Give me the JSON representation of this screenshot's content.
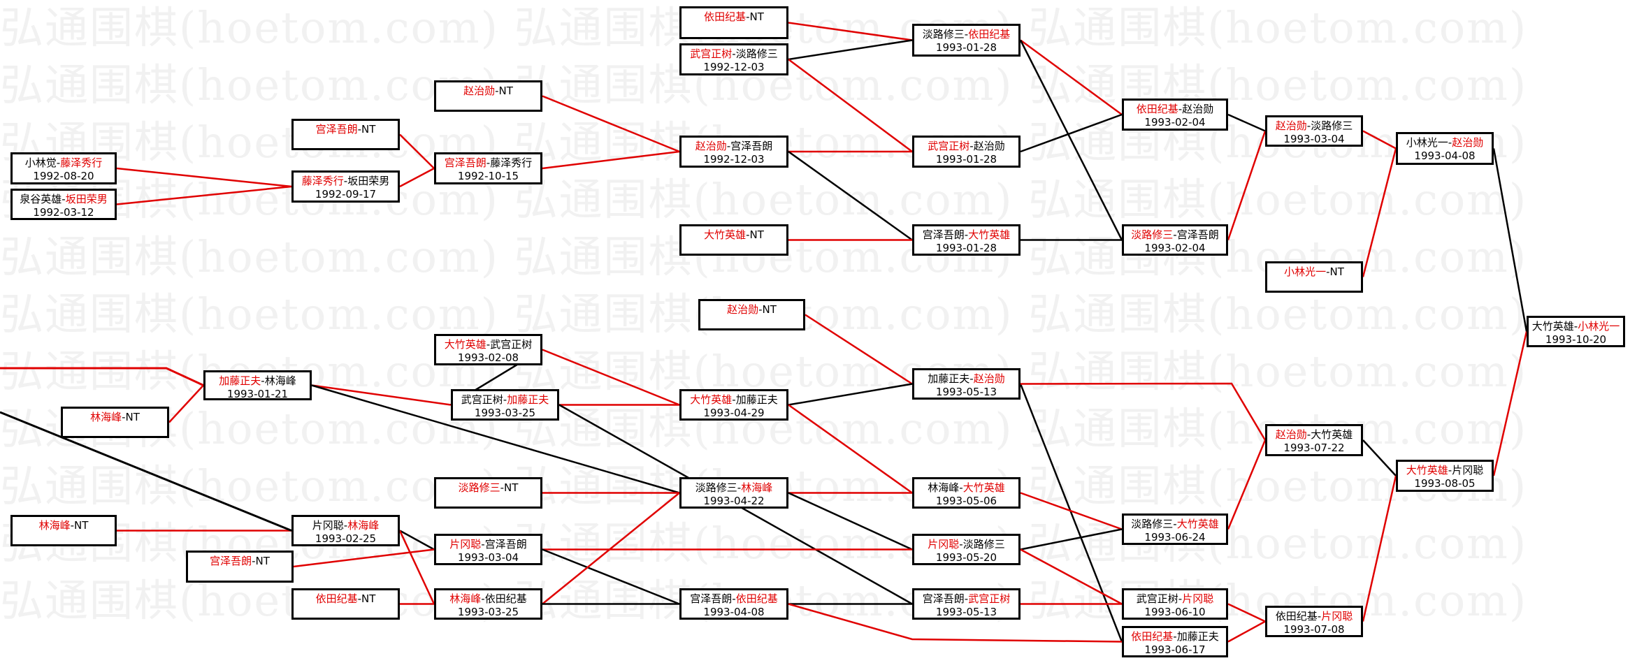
{
  "watermark": "弘通围棋(hoetom.com) 弘通围棋(hoetom.com) 弘通围棋(hoetom.com)",
  "colors": {
    "winner": "#e00000",
    "loser": "#000000",
    "border": "#000000"
  },
  "matches": [
    {
      "id": "A1",
      "p1": "小林觉",
      "p2": "藤泽秀行",
      "date": "1992-08-20",
      "winner": "p2"
    },
    {
      "id": "A2",
      "p1": "泉谷英雄",
      "p2": "坂田荣男",
      "date": "1992-03-12",
      "winner": "p2"
    },
    {
      "id": "B1",
      "p1": "宫泽吾朗",
      "p2": "NT",
      "date": "",
      "winner": "p1"
    },
    {
      "id": "B2",
      "p1": "藤泽秀行",
      "p2": "坂田荣男",
      "date": "1992-09-17",
      "winner": "p1"
    },
    {
      "id": "C1",
      "p1": "赵治勋",
      "p2": "NT",
      "date": "",
      "winner": "p1"
    },
    {
      "id": "C2",
      "p1": "宫泽吾朗",
      "p2": "藤泽秀行",
      "date": "1992-10-15",
      "winner": "p1"
    },
    {
      "id": "D1",
      "p1": "依田纪基",
      "p2": "NT",
      "date": "",
      "winner": "p1"
    },
    {
      "id": "D2",
      "p1": "武宫正树",
      "p2": "淡路修三",
      "date": "1992-12-03",
      "winner": "p1"
    },
    {
      "id": "D3",
      "p1": "赵治勋",
      "p2": "宫泽吾朗",
      "date": "1992-12-03",
      "winner": "p1"
    },
    {
      "id": "D4",
      "p1": "大竹英雄",
      "p2": "NT",
      "date": "",
      "winner": "p1"
    },
    {
      "id": "E1",
      "p1": "淡路修三",
      "p2": "依田纪基",
      "date": "1993-01-28",
      "winner": "p2"
    },
    {
      "id": "E2",
      "p1": "武宫正树",
      "p2": "赵治勋",
      "date": "1993-01-28",
      "winner": "p1"
    },
    {
      "id": "E3",
      "p1": "宫泽吾朗",
      "p2": "大竹英雄",
      "date": "1993-01-28",
      "winner": "p2"
    },
    {
      "id": "F1",
      "p1": "依田纪基",
      "p2": "赵治勋",
      "date": "1993-02-04",
      "winner": "p1"
    },
    {
      "id": "F2",
      "p1": "淡路修三",
      "p2": "宫泽吾朗",
      "date": "1993-02-04",
      "winner": "p1"
    },
    {
      "id": "G1",
      "p1": "赵治勋",
      "p2": "淡路修三",
      "date": "1993-03-04",
      "winner": "p1"
    },
    {
      "id": "G2",
      "p1": "小林光一",
      "p2": "NT",
      "date": "",
      "winner": "p1"
    },
    {
      "id": "H1",
      "p1": "小林光一",
      "p2": "赵治勋",
      "date": "1993-04-08",
      "winner": "p2"
    },
    {
      "id": "I",
      "p1": "大竹英雄",
      "p2": "小林光一",
      "date": "1993-10-20",
      "winner": "p2"
    },
    {
      "id": "J1",
      "p1": "赵治勋",
      "p2": "NT",
      "date": "",
      "winner": "p1"
    },
    {
      "id": "K1",
      "p1": "大竹英雄",
      "p2": "武宫正树",
      "date": "1993-02-08",
      "winner": "p1"
    },
    {
      "id": "L",
      "p1": "加藤正夫",
      "p2": "林海峰",
      "date": "1993-01-21",
      "winner": "p1"
    },
    {
      "id": "M",
      "p1": "林海峰",
      "p2": "NT",
      "date": "",
      "winner": "p1"
    },
    {
      "id": "K2",
      "p1": "武宫正树",
      "p2": "加藤正夫",
      "date": "1993-03-25",
      "winner": "p2"
    },
    {
      "id": "N1",
      "p1": "大竹英雄",
      "p2": "加藤正夫",
      "date": "1993-04-29",
      "winner": "p1"
    },
    {
      "id": "O1",
      "p1": "加藤正夫",
      "p2": "赵治勋",
      "date": "1993-05-13",
      "winner": "p2"
    },
    {
      "id": "K3",
      "p1": "淡路修三",
      "p2": "NT",
      "date": "",
      "winner": "p1"
    },
    {
      "id": "N2",
      "p1": "淡路修三",
      "p2": "林海峰",
      "date": "1993-04-22",
      "winner": "p2"
    },
    {
      "id": "O2",
      "p1": "林海峰",
      "p2": "大竹英雄",
      "date": "1993-05-06",
      "winner": "p2"
    },
    {
      "id": "P",
      "p1": "林海峰",
      "p2": "NT",
      "date": "",
      "winner": "p1"
    },
    {
      "id": "Q",
      "p1": "片冈聪",
      "p2": "林海峰",
      "date": "1993-02-25",
      "winner": "p2"
    },
    {
      "id": "R",
      "p1": "宫泽吾朗",
      "p2": "NT",
      "date": "",
      "winner": "p1"
    },
    {
      "id": "K4",
      "p1": "片冈聪",
      "p2": "宫泽吾朗",
      "date": "1993-03-04",
      "winner": "p1"
    },
    {
      "id": "S",
      "p1": "依田纪基",
      "p2": "NT",
      "date": "",
      "winner": "p1"
    },
    {
      "id": "K5",
      "p1": "林海峰",
      "p2": "依田纪基",
      "date": "1993-03-25",
      "winner": "p1"
    },
    {
      "id": "N3",
      "p1": "宫泽吾朗",
      "p2": "依田纪基",
      "date": "1993-04-08",
      "winner": "p2"
    },
    {
      "id": "O3",
      "p1": "片冈聪",
      "p2": "淡路修三",
      "date": "1993-05-20",
      "winner": "p1"
    },
    {
      "id": "O4",
      "p1": "宫泽吾朗",
      "p2": "武宫正树",
      "date": "1993-05-13",
      "winner": "p2"
    },
    {
      "id": "T1",
      "p1": "淡路修三",
      "p2": "大竹英雄",
      "date": "1993-06-24",
      "winner": "p2"
    },
    {
      "id": "T2",
      "p1": "武宫正树",
      "p2": "片冈聪",
      "date": "1993-06-10",
      "winner": "p2"
    },
    {
      "id": "T3",
      "p1": "依田纪基",
      "p2": "加藤正夫",
      "date": "1993-06-17",
      "winner": "p1"
    },
    {
      "id": "U1",
      "p1": "赵治勋",
      "p2": "大竹英雄",
      "date": "1993-07-22",
      "winner": "p1"
    },
    {
      "id": "U2",
      "p1": "依田纪基",
      "p2": "片冈聪",
      "date": "1993-07-08",
      "winner": "p2"
    },
    {
      "id": "V",
      "p1": "大竹英雄",
      "p2": "片冈聪",
      "date": "1993-08-05",
      "winner": "p1"
    }
  ]
}
